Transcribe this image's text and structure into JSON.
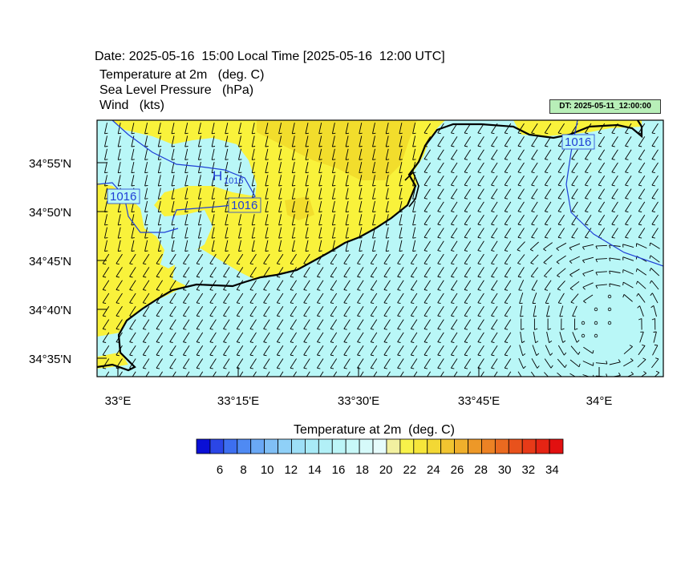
{
  "header": {
    "date_line": "Date: 2025-05-16  15:00 Local Time [2025-05-16  12:00 UTC]",
    "variables": [
      "Temperature at 2m   (deg. C)",
      "Sea Level Pressure   (hPa)",
      "Wind   (kts)"
    ],
    "dt_badge": "DT: 2025-05-11_12:00:00"
  },
  "map": {
    "lat_labels": [
      "34°55'N",
      "34°50'N",
      "34°45'N",
      "34°40'N",
      "34°35'N"
    ],
    "lon_labels": [
      "33°E",
      "33°15'E",
      "33°30'E",
      "33°45'E",
      "34°E"
    ],
    "isobar_labels": [
      "1016",
      "1016",
      "1016"
    ],
    "high_marker": {
      "letter": "H",
      "value": "1016"
    },
    "colors": {
      "sea": "#b9f7f7",
      "land_warm": "#f9f23b",
      "land_hot": "#f2dd2c",
      "coast": "#000000",
      "isobar": "#1f3fd6"
    }
  },
  "colorbar": {
    "title": "Temperature at 2m  (deg. C)",
    "labels": [
      "6",
      "8",
      "10",
      "12",
      "14",
      "16",
      "18",
      "20",
      "22",
      "24",
      "26",
      "28",
      "30",
      "32",
      "34"
    ],
    "colors": [
      "#0a0fd6",
      "#2b46e6",
      "#3d6ff0",
      "#4f8af3",
      "#6aa8f5",
      "#80bff5",
      "#8fd0f7",
      "#9ddff7",
      "#a8eaf7",
      "#b2f0f7",
      "#bcf5f7",
      "#c8f8f8",
      "#d6fafa",
      "#e6fcfc",
      "#f2f0a0",
      "#f8f24a",
      "#f6e63a",
      "#f3d834",
      "#f1c430",
      "#efaf2c",
      "#ed9828",
      "#ec8224",
      "#ea6a20",
      "#e8521c",
      "#e73a18",
      "#e52414",
      "#e21010"
    ]
  }
}
